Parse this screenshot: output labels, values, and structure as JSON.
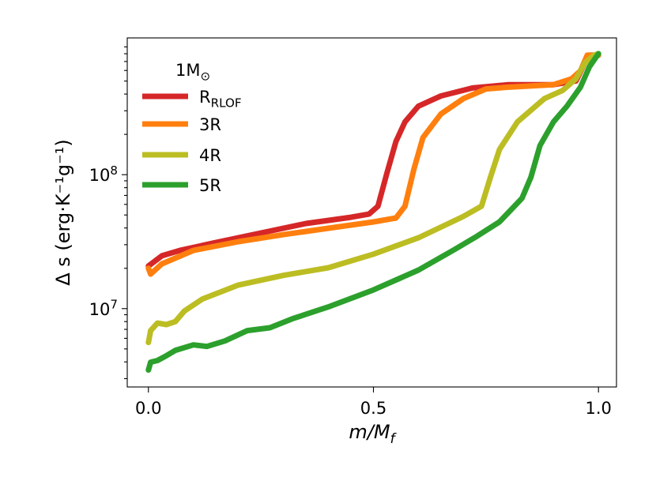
{
  "chart_data": {
    "type": "line",
    "xlabel": "m/M_f",
    "ylabel": "Δ s (erg·K⁻¹g⁻¹)",
    "legend_title": "1M_⊙",
    "legend": "upper left",
    "log_y": true,
    "grid": false,
    "xlim": [
      -0.047,
      1.04
    ],
    "ylim": [
      2600000,
      1050000000
    ],
    "xticks": [
      {
        "value": 0,
        "label": "0.0"
      },
      0.5,
      {
        "value": 1,
        "label": "1.0"
      }
    ],
    "yticks": [
      {
        "value": 10000000,
        "label": "10^7"
      },
      {
        "value": 100000000,
        "label": "10^8"
      }
    ],
    "yminorticks": [
      3000000,
      4000000,
      5000000,
      6000000,
      7000000,
      8000000,
      9000000,
      20000000,
      30000000,
      40000000,
      50000000,
      60000000,
      70000000,
      80000000,
      90000000,
      200000000,
      300000000,
      400000000,
      500000000,
      600000000,
      700000000,
      800000000,
      900000000
    ],
    "series": [
      {
        "name": "R_RLOF",
        "color": "#d62728",
        "x": [
          0.0,
          0.03,
          0.07,
          0.15,
          0.25,
          0.35,
          0.45,
          0.49,
          0.51,
          0.53,
          0.55,
          0.57,
          0.6,
          0.65,
          0.72,
          0.8,
          0.9,
          0.95,
          0.97,
          0.98,
          1.0
        ],
        "values": [
          20800000,
          24800000,
          27200000,
          31200000,
          36700000,
          43200000,
          48100000,
          50800000,
          58200000,
          103000000,
          177000000,
          248000000,
          325000000,
          387000000,
          444000000,
          470000000,
          470000000,
          500000000,
          684000000,
          780000000,
          780000000
        ]
      },
      {
        "name": "3R",
        "color": "#ff7f0e",
        "x": [
          0.0,
          0.005,
          0.03,
          0.1,
          0.2,
          0.3,
          0.4,
          0.5,
          0.55,
          0.57,
          0.59,
          0.61,
          0.65,
          0.7,
          0.75,
          0.8,
          0.9,
          0.94,
          0.96,
          0.975,
          1.0
        ],
        "values": [
          20000000,
          18100000,
          21600000,
          27200000,
          31600000,
          35700000,
          39800000,
          44400000,
          47500000,
          58200000,
          110000000,
          189000000,
          284000000,
          370000000,
          437000000,
          450000000,
          470000000,
          520000000,
          596000000,
          780000000,
          780000000
        ]
      },
      {
        "name": "4R",
        "color": "#bcbd22",
        "x": [
          0.0,
          0.005,
          0.02,
          0.04,
          0.06,
          0.08,
          0.12,
          0.2,
          0.3,
          0.4,
          0.5,
          0.6,
          0.7,
          0.74,
          0.76,
          0.78,
          0.82,
          0.88,
          0.92,
          0.95,
          0.97,
          0.99,
          1.0
        ],
        "values": [
          5590000,
          6850000,
          7800000,
          7600000,
          8000000,
          9600000,
          11800000,
          15000000,
          17700000,
          20200000,
          25500000,
          33800000,
          48800000,
          58200000,
          96000000,
          154000000,
          248000000,
          370000000,
          425000000,
          520000000,
          684000000,
          780000000,
          800000000
        ]
      },
      {
        "name": "5R",
        "color": "#2ca02c",
        "x": [
          0.0,
          0.005,
          0.02,
          0.04,
          0.06,
          0.1,
          0.13,
          0.17,
          0.22,
          0.27,
          0.32,
          0.4,
          0.5,
          0.6,
          0.68,
          0.73,
          0.78,
          0.83,
          0.85,
          0.87,
          0.9,
          0.93,
          0.96,
          0.98,
          1.0
        ],
        "values": [
          3480000,
          3980000,
          4100000,
          4450000,
          4880000,
          5360000,
          5220000,
          5740000,
          6850000,
          7200000,
          8400000,
          10300000,
          13800000,
          19400000,
          27600000,
          34700000,
          44400000,
          66600000,
          96000000,
          165000000,
          248000000,
          325000000,
          450000000,
          640000000,
          800000000
        ]
      }
    ]
  }
}
